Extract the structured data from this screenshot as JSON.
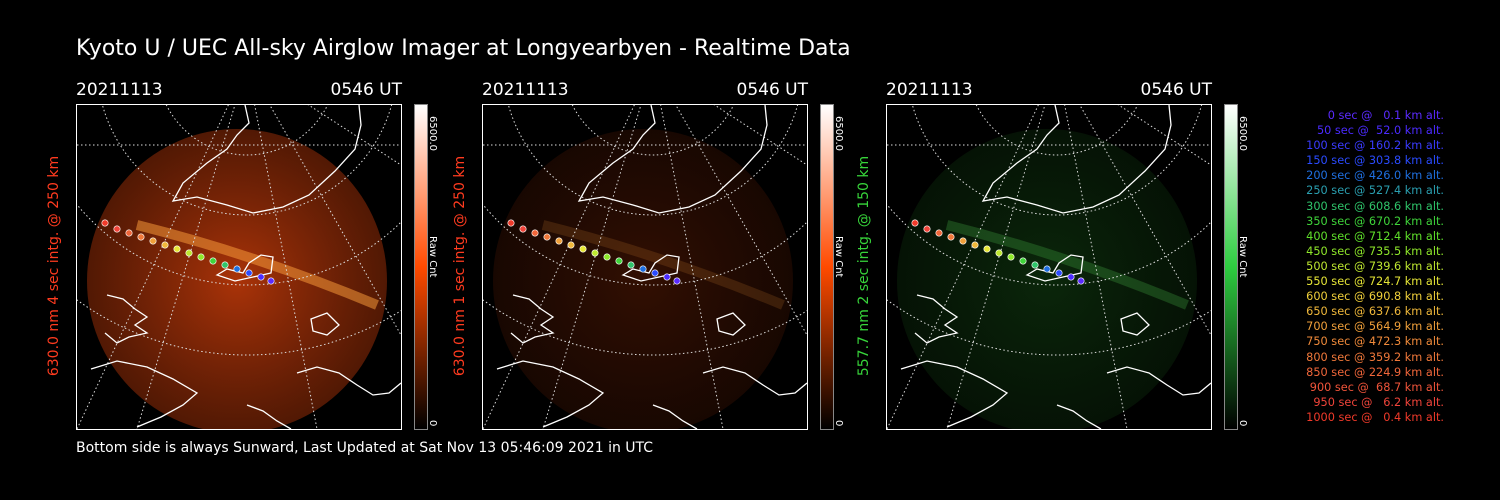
{
  "page": {
    "title": "Kyoto U / UEC All-sky Airglow Imager at Longyearbyen - Realtime Data",
    "footer": "Bottom side is always Sunward, Last Updated at Sat Nov 13 05:46:09 2021 in UTC"
  },
  "panels": [
    {
      "date": "20211113",
      "time": "0546 UT",
      "ylabel": "630.0 nm 4 sec intg. @ 250 km",
      "label_color": "#ff3b1f",
      "colorbar_max": "6500.0",
      "colorbar_min": "0",
      "colorbar_unit": "Raw Cnt",
      "colorbar_color": "#ff4a00",
      "intensity": 0.85
    },
    {
      "date": "20211113",
      "time": "0546 UT",
      "ylabel": "630.0 nm 1 sec intg. @ 250 km",
      "label_color": "#ff3b1f",
      "colorbar_max": "6500.0",
      "colorbar_min": "0",
      "colorbar_unit": "Raw Cnt",
      "colorbar_color": "#ff4a00",
      "intensity": 0.25
    },
    {
      "date": "20211113",
      "time": "0546 UT",
      "ylabel": "557.7 nm 2 sec intg. @ 150 km",
      "label_color": "#37d43a",
      "colorbar_max": "6500.0",
      "colorbar_min": "0",
      "colorbar_unit": "Raw Cnt",
      "colorbar_color": "#2ecc40",
      "intensity": 0.35
    }
  ],
  "legend": [
    {
      "text": "0 sec @   0.1 km alt.",
      "color": "#5b2bff"
    },
    {
      "text": "50 sec @  52.0 km alt.",
      "color": "#4b2bff"
    },
    {
      "text": "100 sec @ 160.2 km alt.",
      "color": "#3a3bff"
    },
    {
      "text": "150 sec @ 303.8 km alt.",
      "color": "#2a4bff"
    },
    {
      "text": "200 sec @ 426.0 km alt.",
      "color": "#1f6fe0"
    },
    {
      "text": "250 sec @ 527.4 km alt.",
      "color": "#2a9fb0"
    },
    {
      "text": "300 sec @ 608.6 km alt.",
      "color": "#2fc46a"
    },
    {
      "text": "350 sec @ 670.2 km alt.",
      "color": "#3fd43a"
    },
    {
      "text": "400 sec @ 712.4 km alt.",
      "color": "#5fe02a"
    },
    {
      "text": "450 sec @ 735.5 km alt.",
      "color": "#8fe82a"
    },
    {
      "text": "500 sec @ 739.6 km alt.",
      "color": "#bfe830"
    },
    {
      "text": "550 sec @ 724.7 km alt.",
      "color": "#e6e636"
    },
    {
      "text": "600 sec @ 690.8 km alt.",
      "color": "#f0d03a"
    },
    {
      "text": "650 sec @ 637.6 km alt.",
      "color": "#f0b83a"
    },
    {
      "text": "700 sec @ 564.9 km alt.",
      "color": "#f0a03a"
    },
    {
      "text": "750 sec @ 472.3 km alt.",
      "color": "#f08a3a"
    },
    {
      "text": "800 sec @ 359.2 km alt.",
      "color": "#f0783a"
    },
    {
      "text": "850 sec @ 224.9 km alt.",
      "color": "#f0663a"
    },
    {
      "text": "900 sec @  68.7 km alt.",
      "color": "#f0543a"
    },
    {
      "text": "950 sec @   6.2 km alt.",
      "color": "#f0443a"
    },
    {
      "text": "1000 sec @   0.4 km alt.",
      "color": "#f03a2a"
    }
  ]
}
